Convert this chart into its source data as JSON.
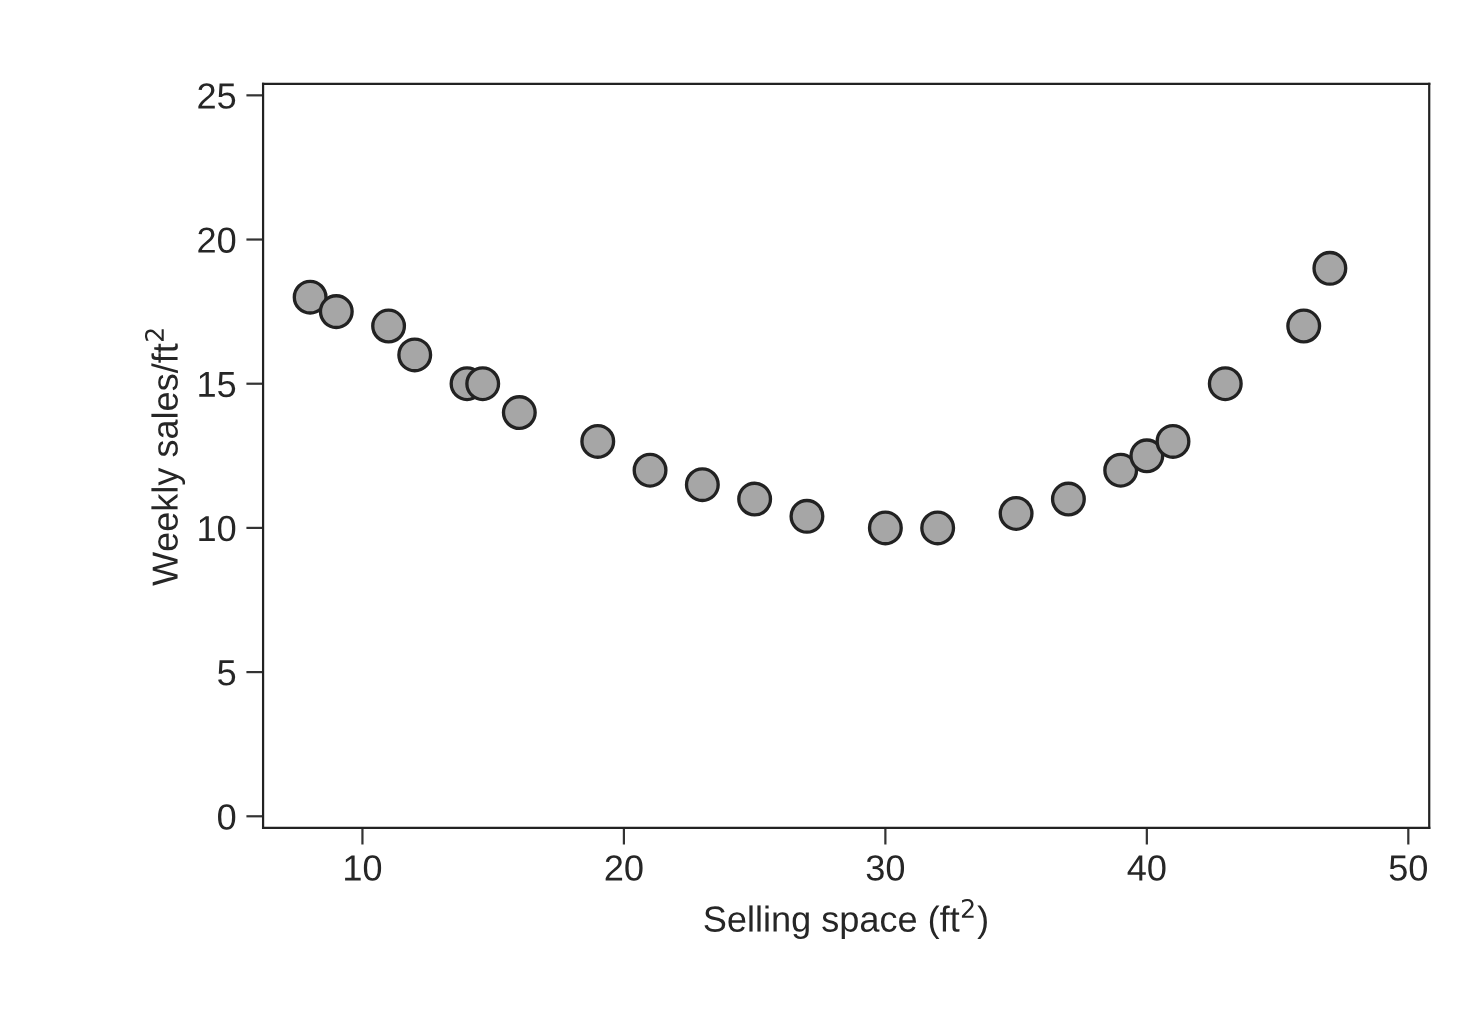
{
  "chart_data": {
    "type": "scatter",
    "xlabel": "Selling space (ft$^{2}$)",
    "ylabel": "Weekly sales/ft$^{2}$",
    "x": [
      8,
      9,
      11,
      12,
      14,
      14.6,
      16,
      19,
      21,
      23,
      25,
      27,
      30,
      32,
      35,
      37,
      39,
      40,
      41,
      43,
      46,
      47
    ],
    "series": [
      {
        "color": "#a6a6a6",
        "values": [
          18,
          17.5,
          17,
          16,
          15,
          15,
          14,
          13,
          12,
          11.5,
          11,
          10.4,
          10,
          10,
          10.5,
          11,
          12,
          12.5,
          13,
          15,
          17,
          19
        ]
      }
    ],
    "xlim": [
      6.2,
      50.8
    ],
    "xticks": [
      10,
      20,
      30,
      40,
      50
    ],
    "ylim": [
      -0.4,
      25.4
    ],
    "yticks": [
      0,
      5,
      10,
      15,
      20,
      25
    ],
    "grid": false,
    "legend": false,
    "marker": "circle"
  }
}
